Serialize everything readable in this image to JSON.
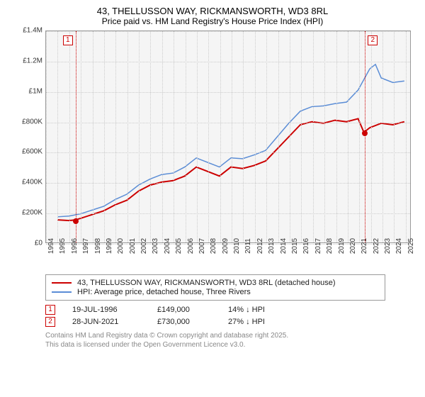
{
  "title": "43, THELLUSSON WAY, RICKMANSWORTH, WD3 8RL",
  "subtitle": "Price paid vs. HM Land Registry's House Price Index (HPI)",
  "chart": {
    "type": "line",
    "background_color": "#f5f5f5",
    "grid_color": "#cccccc",
    "border_color": "#999999",
    "ylim": [
      0,
      1400000
    ],
    "yticks": [
      {
        "v": 0,
        "label": "£0"
      },
      {
        "v": 200000,
        "label": "£200K"
      },
      {
        "v": 400000,
        "label": "£400K"
      },
      {
        "v": 600000,
        "label": "£600K"
      },
      {
        "v": 800000,
        "label": "£800K"
      },
      {
        "v": 1000000,
        "label": "£1M"
      },
      {
        "v": 1200000,
        "label": "£1.2M"
      },
      {
        "v": 1400000,
        "label": "£1.4M"
      }
    ],
    "xlim": [
      1994,
      2025.5
    ],
    "xticks": [
      1994,
      1995,
      1996,
      1997,
      1998,
      1999,
      2000,
      2001,
      2002,
      2003,
      2004,
      2005,
      2006,
      2007,
      2008,
      2009,
      2010,
      2011,
      2012,
      2013,
      2014,
      2015,
      2016,
      2017,
      2018,
      2019,
      2020,
      2021,
      2022,
      2023,
      2024,
      2025
    ],
    "series": [
      {
        "name": "property",
        "label": "43, THELLUSSON WAY, RICKMANSWORTH, WD3 8RL (detached house)",
        "color": "#cc0000",
        "width": 2,
        "points": [
          [
            1995,
            150000
          ],
          [
            1996,
            145000
          ],
          [
            1996.5,
            149000
          ],
          [
            1997,
            160000
          ],
          [
            1998,
            185000
          ],
          [
            1999,
            210000
          ],
          [
            2000,
            250000
          ],
          [
            2001,
            280000
          ],
          [
            2002,
            340000
          ],
          [
            2003,
            380000
          ],
          [
            2004,
            400000
          ],
          [
            2005,
            410000
          ],
          [
            2006,
            440000
          ],
          [
            2007,
            500000
          ],
          [
            2008,
            470000
          ],
          [
            2009,
            440000
          ],
          [
            2010,
            500000
          ],
          [
            2011,
            490000
          ],
          [
            2012,
            510000
          ],
          [
            2013,
            540000
          ],
          [
            2014,
            620000
          ],
          [
            2015,
            700000
          ],
          [
            2016,
            780000
          ],
          [
            2017,
            800000
          ],
          [
            2018,
            790000
          ],
          [
            2019,
            810000
          ],
          [
            2020,
            800000
          ],
          [
            2021,
            820000
          ],
          [
            2021.5,
            730000
          ],
          [
            2022,
            760000
          ],
          [
            2023,
            790000
          ],
          [
            2024,
            780000
          ],
          [
            2025,
            800000
          ]
        ]
      },
      {
        "name": "hpi",
        "label": "HPI: Average price, detached house, Three Rivers",
        "color": "#5b8dd6",
        "width": 1.5,
        "points": [
          [
            1995,
            170000
          ],
          [
            1996,
            175000
          ],
          [
            1997,
            190000
          ],
          [
            1998,
            215000
          ],
          [
            1999,
            240000
          ],
          [
            2000,
            285000
          ],
          [
            2001,
            320000
          ],
          [
            2002,
            380000
          ],
          [
            2003,
            420000
          ],
          [
            2004,
            450000
          ],
          [
            2005,
            460000
          ],
          [
            2006,
            500000
          ],
          [
            2007,
            560000
          ],
          [
            2008,
            530000
          ],
          [
            2009,
            500000
          ],
          [
            2010,
            560000
          ],
          [
            2011,
            555000
          ],
          [
            2012,
            580000
          ],
          [
            2013,
            610000
          ],
          [
            2014,
            700000
          ],
          [
            2015,
            790000
          ],
          [
            2016,
            870000
          ],
          [
            2017,
            900000
          ],
          [
            2018,
            905000
          ],
          [
            2019,
            920000
          ],
          [
            2020,
            930000
          ],
          [
            2021,
            1010000
          ],
          [
            2022,
            1150000
          ],
          [
            2022.5,
            1180000
          ],
          [
            2023,
            1090000
          ],
          [
            2024,
            1060000
          ],
          [
            2025,
            1070000
          ]
        ]
      }
    ],
    "markers": [
      {
        "id": "1",
        "x": 1996.55,
        "y": 149000
      },
      {
        "id": "2",
        "x": 2021.49,
        "y": 730000
      }
    ]
  },
  "legend": {
    "rows": [
      {
        "color": "#cc0000",
        "label": "43, THELLUSSON WAY, RICKMANSWORTH, WD3 8RL (detached house)"
      },
      {
        "color": "#5b8dd6",
        "label": "HPI: Average price, detached house, Three Rivers"
      }
    ]
  },
  "sales": [
    {
      "id": "1",
      "date": "19-JUL-1996",
      "price": "£149,000",
      "delta": "14% ↓ HPI"
    },
    {
      "id": "2",
      "date": "28-JUN-2021",
      "price": "£730,000",
      "delta": "27% ↓ HPI"
    }
  ],
  "footer_lines": [
    "Contains HM Land Registry data © Crown copyright and database right 2025.",
    "This data is licensed under the Open Government Licence v3.0."
  ]
}
